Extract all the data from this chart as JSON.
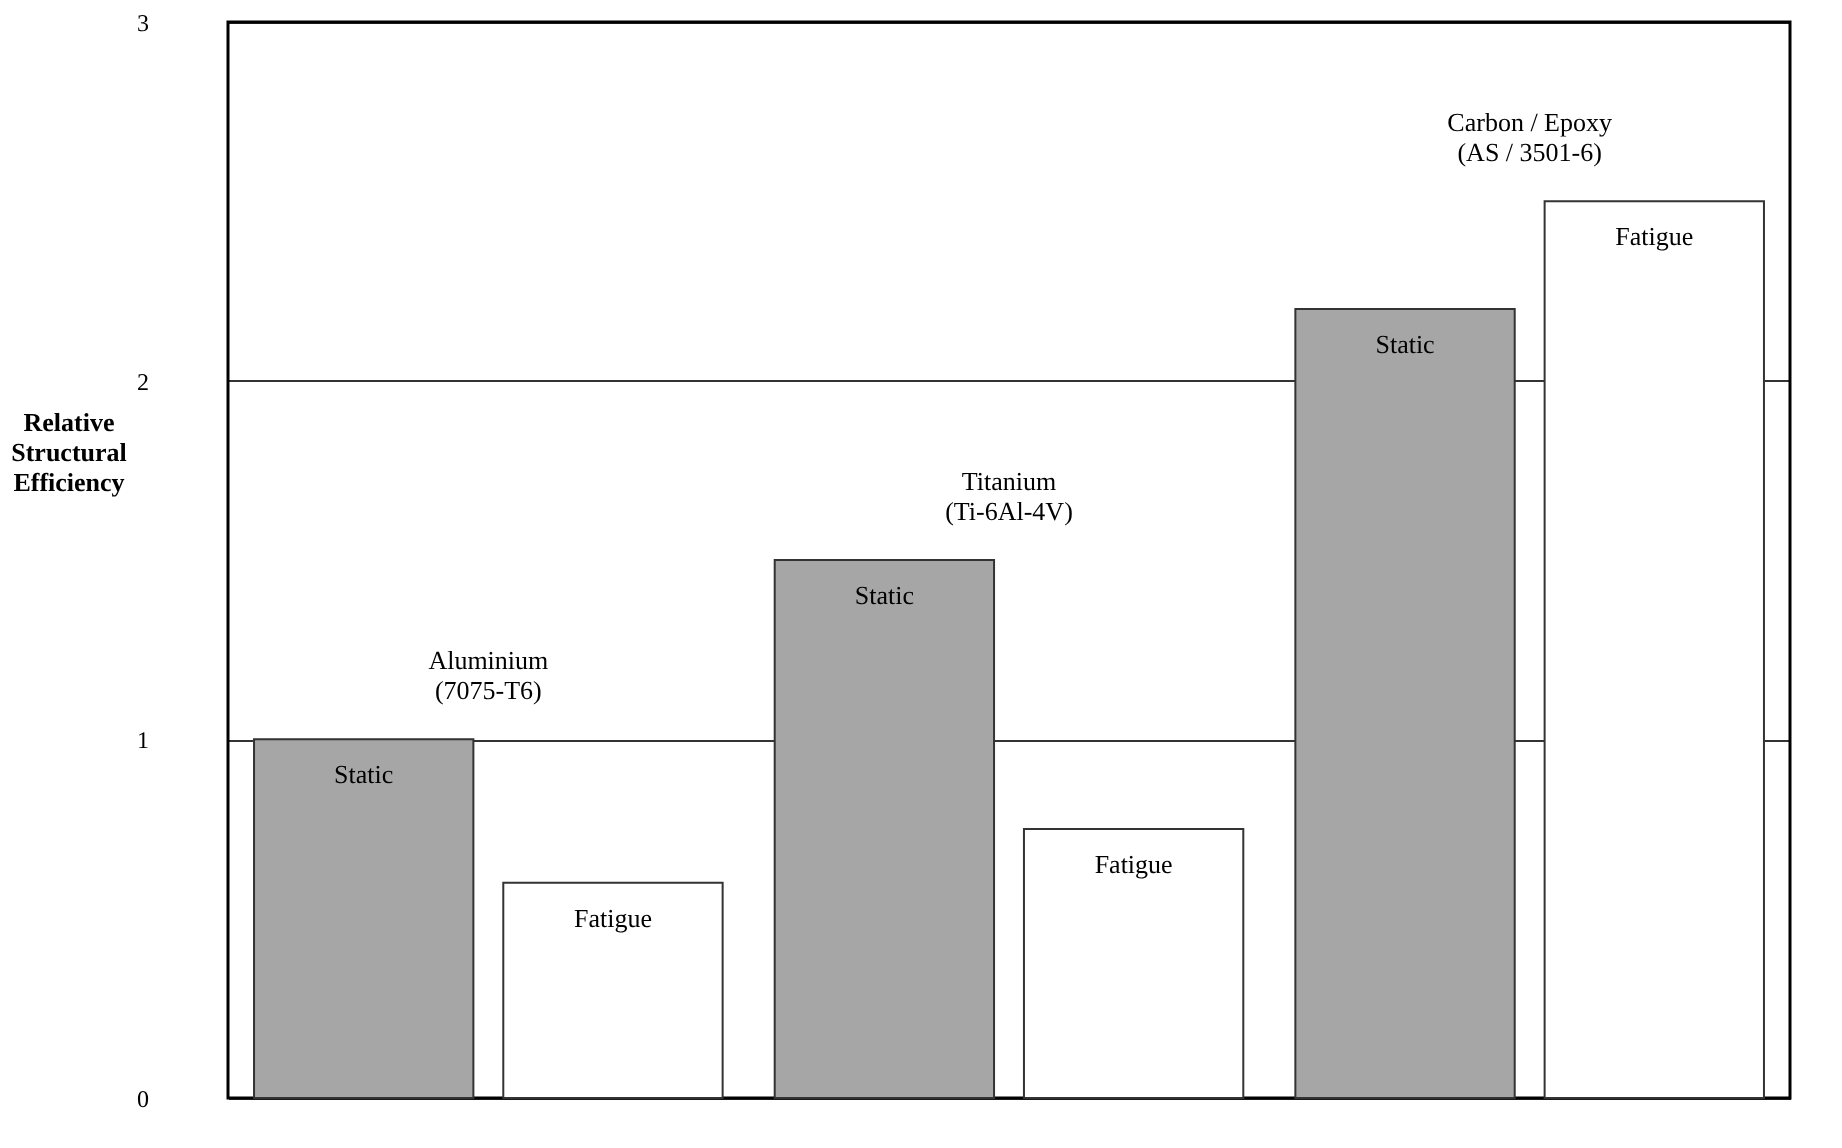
{
  "chart_data": {
    "type": "bar",
    "ylabel": "Relative Structural Efficiency",
    "categories": [
      "Aluminium\n(7075-T6)",
      "Titanium\n(Ti-6Al-4V)",
      "Carbon / Epoxy\n(AS / 3501-6)"
    ],
    "series": [
      {
        "name": "Static",
        "color": "#a6a6a6",
        "values": [
          1.0,
          1.5,
          2.2
        ]
      },
      {
        "name": "Fatigue",
        "color": "#ffffff",
        "values": [
          0.6,
          0.75,
          2.5
        ]
      }
    ],
    "ylim": [
      0,
      3
    ],
    "yticks": [
      0,
      1,
      2,
      3
    ],
    "grid": "y"
  }
}
